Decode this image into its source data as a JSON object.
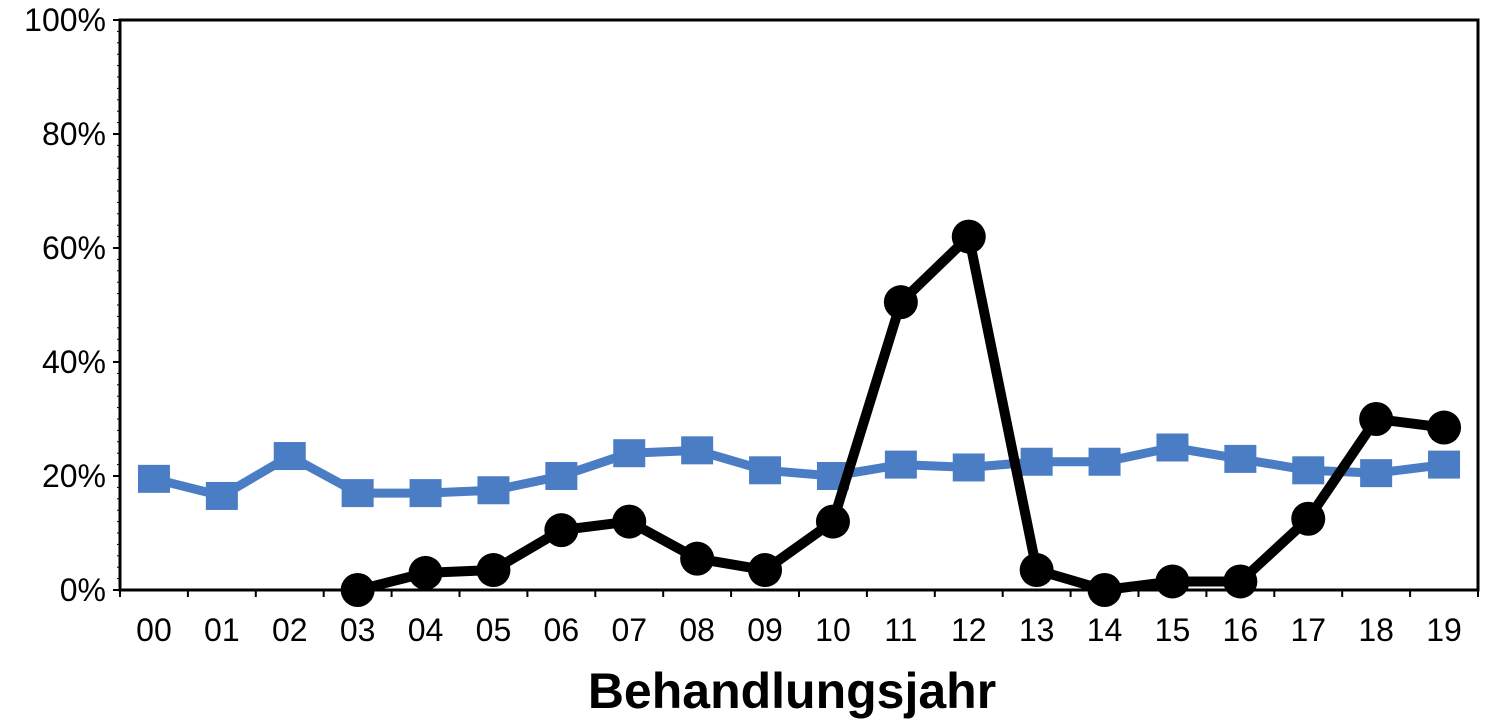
{
  "chart_data": {
    "type": "line",
    "title": "",
    "xlabel": "Behandlungsjahr",
    "ylabel": "",
    "categories": [
      "00",
      "01",
      "02",
      "03",
      "04",
      "05",
      "06",
      "07",
      "08",
      "09",
      "10",
      "11",
      "12",
      "13",
      "14",
      "15",
      "16",
      "17",
      "18",
      "19"
    ],
    "y_ticks": [
      "0%",
      "20%",
      "40%",
      "60%",
      "80%",
      "100%"
    ],
    "ylim": [
      0,
      100
    ],
    "grid": false,
    "legend": "none",
    "series": [
      {
        "color": "#4a7dc4",
        "marker": "square",
        "values": [
          19.5,
          16.5,
          23.5,
          17,
          17,
          17.5,
          20,
          24,
          24.5,
          21,
          20,
          22,
          21.5,
          22.5,
          22.5,
          25,
          23,
          21,
          20.5,
          22
        ]
      },
      {
        "color": "#000000",
        "marker": "circle",
        "values": [
          null,
          null,
          null,
          0,
          3,
          3.5,
          10.5,
          12,
          5.5,
          3.5,
          12,
          50.5,
          62,
          3.5,
          0,
          1.5,
          1.5,
          12.5,
          30,
          28.5
        ]
      }
    ]
  }
}
